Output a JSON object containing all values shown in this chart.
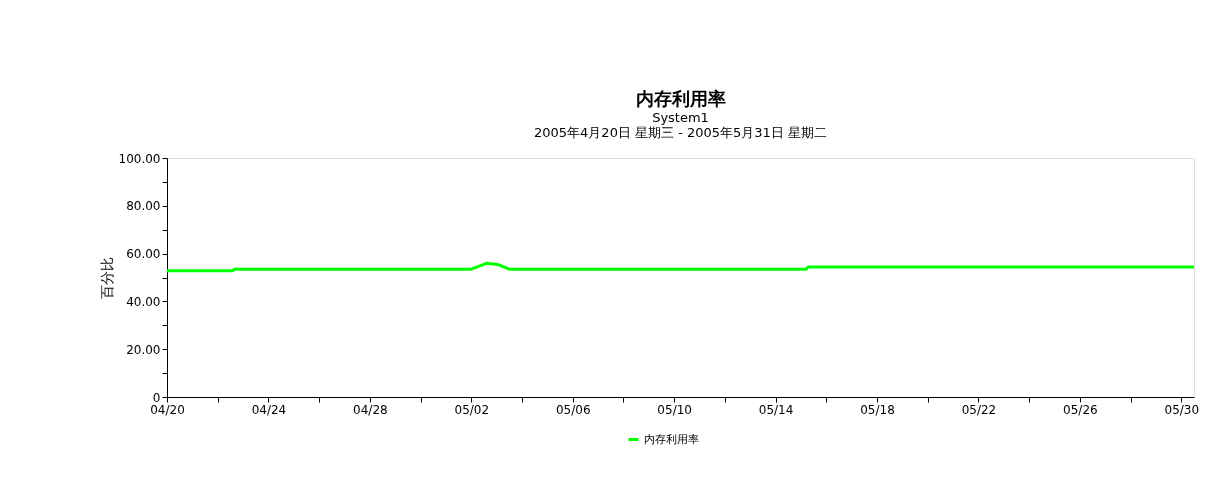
{
  "chart_data": {
    "type": "line",
    "title": "内存利用率",
    "subtitle": "System1",
    "annotations": [
      "2005年4月20日 星期三 - 2005年5月31日 星期二"
    ],
    "ylabel": "百分比",
    "x": [
      "2005-04-20",
      "2005-04-22T14:00",
      "2005-04-22T16:00",
      "2005-05-02",
      "2005-05-02T15:00",
      "2005-05-03T02:00",
      "2005-05-03T12:00",
      "2005-05-15T05:00",
      "2005-05-15T07:00",
      "2005-05-30T12:00"
    ],
    "series": [
      {
        "name": "内存利用率",
        "color": "#00ff00",
        "values": [
          52.8,
          52.8,
          53.5,
          53.5,
          56,
          55.3,
          53.5,
          53.5,
          54.4,
          54.4
        ]
      }
    ],
    "xlim": [
      "2005-04-20",
      "2005-05-30T12:00"
    ],
    "xticks": [
      {
        "value": "2005-04-20",
        "label": "04/20"
      },
      {
        "value": "2005-04-22",
        "label": null
      },
      {
        "value": "2005-04-24",
        "label": "04/24"
      },
      {
        "value": "2005-04-26",
        "label": null
      },
      {
        "value": "2005-04-28",
        "label": "04/28"
      },
      {
        "value": "2005-04-30",
        "label": null
      },
      {
        "value": "2005-05-02",
        "label": "05/02"
      },
      {
        "value": "2005-05-04",
        "label": null
      },
      {
        "value": "2005-05-06",
        "label": "05/06"
      },
      {
        "value": "2005-05-08",
        "label": null
      },
      {
        "value": "2005-05-10",
        "label": "05/10"
      },
      {
        "value": "2005-05-12",
        "label": null
      },
      {
        "value": "2005-05-14",
        "label": "05/14"
      },
      {
        "value": "2005-05-16",
        "label": null
      },
      {
        "value": "2005-05-18",
        "label": "05/18"
      },
      {
        "value": "2005-05-20",
        "label": null
      },
      {
        "value": "2005-05-22",
        "label": "05/22"
      },
      {
        "value": "2005-05-24",
        "label": null
      },
      {
        "value": "2005-05-26",
        "label": "05/26"
      },
      {
        "value": "2005-05-28",
        "label": null
      },
      {
        "value": "2005-05-30",
        "label": "05/30"
      }
    ],
    "ylim": [
      0,
      100
    ],
    "yticks": [
      0,
      {
        "value": 10,
        "label": null
      },
      {
        "value": 20,
        "label": "20.00"
      },
      {
        "value": 30,
        "label": null
      },
      {
        "value": 40,
        "label": "40.00"
      },
      {
        "value": 50,
        "label": null
      },
      {
        "value": 60,
        "label": "60.00"
      },
      {
        "value": 70,
        "label": null
      },
      {
        "value": 80,
        "label": "80.00"
      },
      {
        "value": 90,
        "label": null
      },
      {
        "value": 100,
        "label": "100.00"
      }
    ],
    "grid": false,
    "legend": "bottom",
    "marker": "none",
    "line_style": "solid"
  }
}
